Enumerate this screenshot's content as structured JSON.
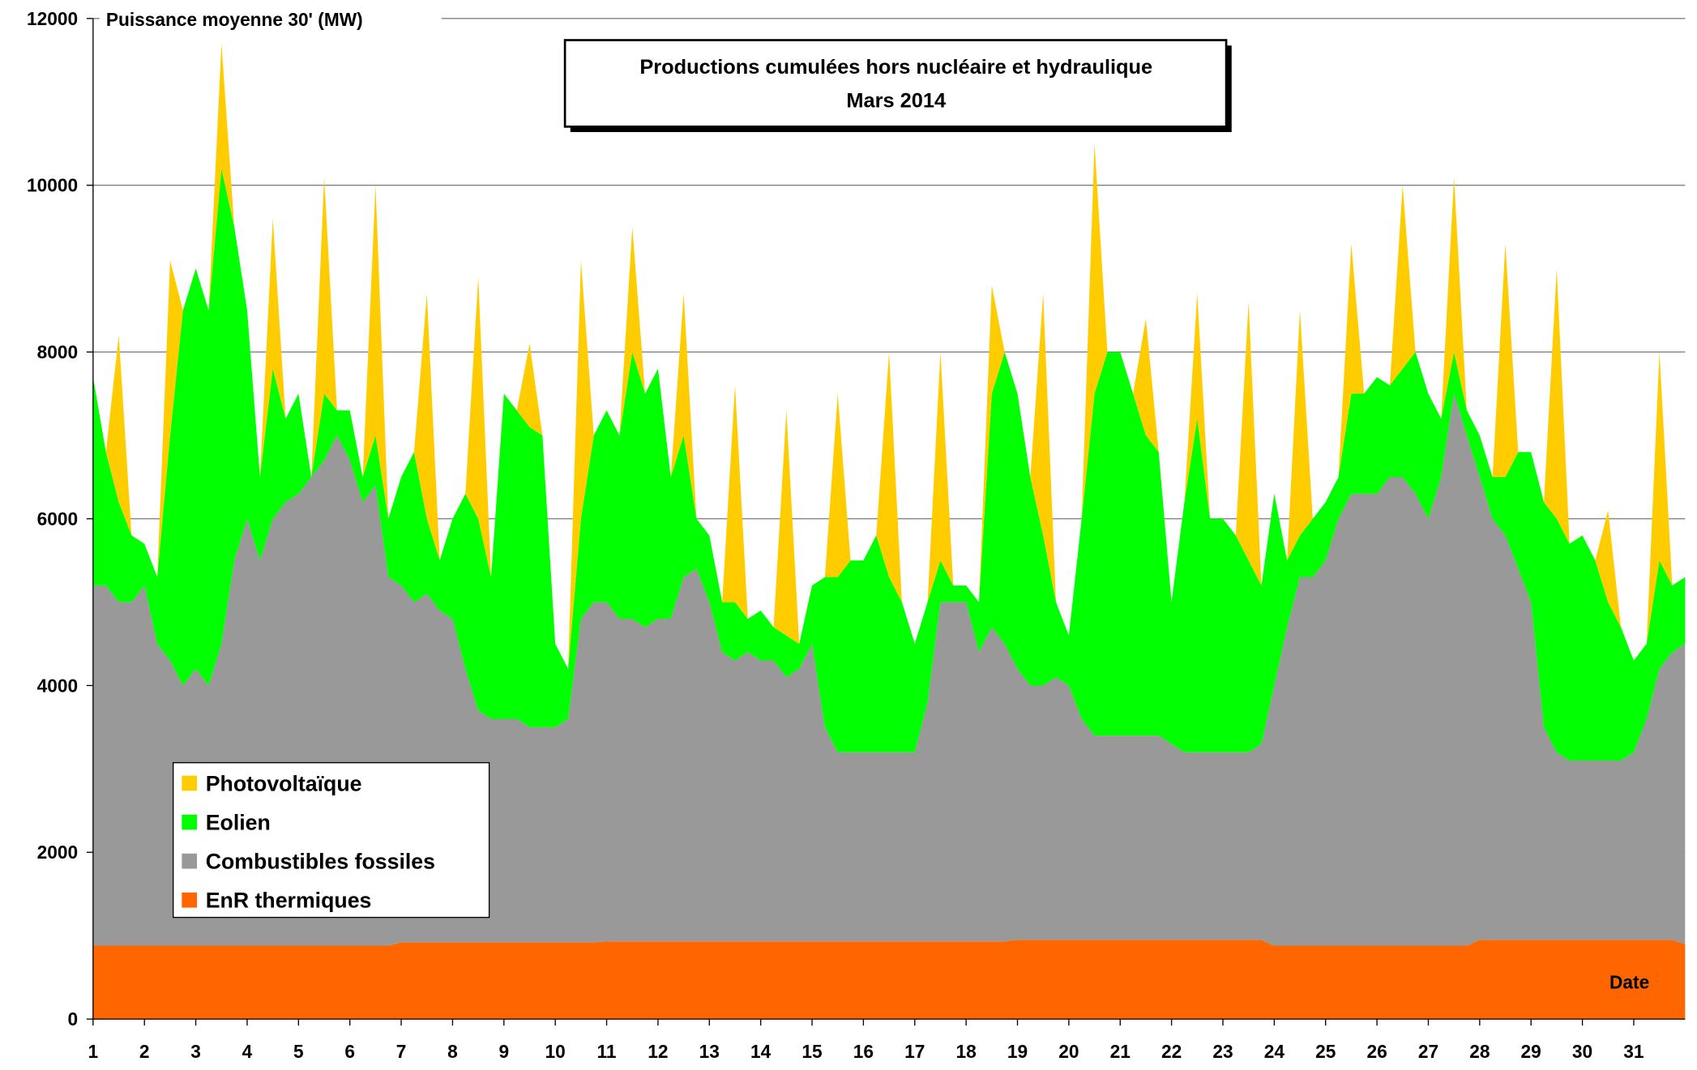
{
  "chart_data": {
    "type": "stacked-area",
    "title": [
      "Productions cumulées hors nucléaire et hydraulique",
      "Mars 2014"
    ],
    "y_label": "Puissance moyenne 30' (MW)",
    "x_label": "Date",
    "xlim": [
      1,
      32
    ],
    "ylim": [
      0,
      12000
    ],
    "xticks": [
      1,
      2,
      3,
      4,
      5,
      6,
      7,
      8,
      9,
      10,
      11,
      12,
      13,
      14,
      15,
      16,
      17,
      18,
      19,
      20,
      21,
      22,
      23,
      24,
      25,
      26,
      27,
      28,
      29,
      30,
      31
    ],
    "yticks": [
      0,
      2000,
      4000,
      6000,
      8000,
      10000,
      12000
    ],
    "grid": true,
    "legend": "lower-left",
    "x": [
      1,
      1.25,
      1.5,
      1.75,
      2,
      2.25,
      2.5,
      2.75,
      3,
      3.25,
      3.5,
      3.75,
      4,
      4.25,
      4.5,
      4.75,
      5,
      5.25,
      5.5,
      5.75,
      6,
      6.25,
      6.5,
      6.75,
      7,
      7.25,
      7.5,
      7.75,
      8,
      8.25,
      8.5,
      8.75,
      9,
      9.25,
      9.5,
      9.75,
      10,
      10.25,
      10.5,
      10.75,
      11,
      11.25,
      11.5,
      11.75,
      12,
      12.25,
      12.5,
      12.75,
      13,
      13.25,
      13.5,
      13.75,
      14,
      14.25,
      14.5,
      14.75,
      15,
      15.25,
      15.5,
      15.75,
      16,
      16.25,
      16.5,
      16.75,
      17,
      17.25,
      17.5,
      17.75,
      18,
      18.25,
      18.5,
      18.75,
      19,
      19.25,
      19.5,
      19.75,
      20,
      20.25,
      20.5,
      20.75,
      21,
      21.25,
      21.5,
      21.75,
      22,
      22.25,
      22.5,
      22.75,
      23,
      23.25,
      23.5,
      23.75,
      24,
      24.25,
      24.5,
      24.75,
      25,
      25.25,
      25.5,
      25.75,
      26,
      26.25,
      26.5,
      26.75,
      27,
      27.25,
      27.5,
      27.75,
      28,
      28.25,
      28.5,
      28.75,
      29,
      29.25,
      29.5,
      29.75,
      30,
      30.25,
      30.5,
      30.75,
      31,
      31.25,
      31.5,
      31.75,
      32
    ],
    "series": [
      {
        "name": "EnR thermiques",
        "color": "#ff6600",
        "values": [
          880,
          880,
          880,
          880,
          880,
          880,
          880,
          880,
          880,
          880,
          880,
          880,
          880,
          880,
          880,
          880,
          880,
          880,
          880,
          880,
          880,
          880,
          880,
          880,
          920,
          920,
          920,
          920,
          920,
          920,
          920,
          920,
          920,
          920,
          920,
          920,
          920,
          920,
          920,
          920,
          930,
          930,
          930,
          930,
          930,
          930,
          930,
          930,
          930,
          930,
          930,
          930,
          930,
          930,
          930,
          930,
          930,
          930,
          930,
          930,
          930,
          930,
          930,
          930,
          930,
          930,
          930,
          930,
          930,
          930,
          930,
          930,
          950,
          950,
          950,
          950,
          950,
          950,
          950,
          950,
          950,
          950,
          950,
          950,
          950,
          950,
          950,
          950,
          950,
          950,
          950,
          950,
          880,
          880,
          880,
          880,
          880,
          880,
          880,
          880,
          880,
          880,
          880,
          880,
          880,
          880,
          880,
          880,
          950,
          950,
          950,
          950,
          950,
          950,
          950,
          950,
          950,
          950,
          950,
          950,
          950,
          950,
          950,
          950,
          900
        ]
      },
      {
        "name": "Combustibles fossiles",
        "color": "#999999",
        "values": [
          4320,
          4320,
          4120,
          4120,
          4320,
          3620,
          3420,
          3120,
          3320,
          3120,
          3620,
          4620,
          5120,
          4620,
          5120,
          5320,
          5420,
          5620,
          5820,
          6120,
          5820,
          5320,
          5520,
          4420,
          4280,
          4080,
          4180,
          3980,
          3880,
          3280,
          2780,
          2680,
          2680,
          2680,
          2580,
          2580,
          2580,
          2680,
          3880,
          4080,
          4070,
          3870,
          3870,
          3770,
          3870,
          3870,
          4370,
          4470,
          4070,
          3470,
          3370,
          3470,
          3370,
          3370,
          3170,
          3270,
          3570,
          2570,
          2270,
          2270,
          2270,
          2270,
          2270,
          2270,
          2270,
          2870,
          4070,
          4070,
          4070,
          3470,
          3770,
          3570,
          3250,
          3050,
          3050,
          3150,
          3050,
          2650,
          2450,
          2450,
          2450,
          2450,
          2450,
          2450,
          2350,
          2250,
          2250,
          2250,
          2250,
          2250,
          2250,
          2350,
          3120,
          3820,
          4420,
          4420,
          4620,
          5120,
          5420,
          5420,
          5420,
          5620,
          5620,
          5420,
          5120,
          5620,
          6620,
          6120,
          5550,
          5050,
          4850,
          4450,
          4050,
          2550,
          2250,
          2150,
          2150,
          2150,
          2150,
          2150,
          2250,
          2650,
          3250,
          3450,
          3600
        ]
      },
      {
        "name": "Eolien",
        "color": "#00ff00",
        "values": [
          2500,
          1600,
          1200,
          800,
          500,
          800,
          2700,
          4500,
          4800,
          4500,
          5700,
          4000,
          2500,
          1000,
          1800,
          1000,
          1200,
          0,
          800,
          300,
          600,
          300,
          600,
          700,
          1300,
          1800,
          900,
          600,
          1200,
          2100,
          2300,
          1700,
          3900,
          3700,
          3600,
          3500,
          1000,
          600,
          1200,
          2000,
          2300,
          2200,
          3200,
          2800,
          3000,
          1700,
          1700,
          600,
          800,
          600,
          700,
          400,
          600,
          400,
          500,
          300,
          700,
          1800,
          2100,
          2300,
          2300,
          2600,
          2100,
          1800,
          1300,
          1200,
          500,
          200,
          200,
          600,
          2800,
          3500,
          3300,
          2500,
          1800,
          900,
          600,
          2400,
          4100,
          4600,
          4600,
          4100,
          3600,
          3400,
          1700,
          3000,
          4000,
          2800,
          2800,
          2600,
          2300,
          1900,
          2300,
          800,
          500,
          700,
          700,
          500,
          1200,
          1200,
          1400,
          1100,
          1300,
          1700,
          1500,
          700,
          500,
          300,
          500,
          500,
          700,
          1400,
          1800,
          2700,
          2800,
          2600,
          2700,
          2400,
          1900,
          1600,
          1100,
          900,
          1300,
          800,
          800
        ]
      },
      {
        "name": "Photovoltaïque",
        "color": "#ffcc00",
        "values": [
          0,
          0,
          2000,
          0,
          0,
          0,
          2100,
          0,
          0,
          0,
          1500,
          0,
          0,
          0,
          1800,
          0,
          0,
          0,
          2600,
          0,
          0,
          0,
          3000,
          0,
          0,
          0,
          2700,
          0,
          0,
          0,
          2900,
          0,
          0,
          0,
          1000,
          0,
          0,
          0,
          3100,
          0,
          0,
          0,
          1500,
          0,
          0,
          0,
          1700,
          0,
          0,
          0,
          2600,
          0,
          0,
          0,
          2700,
          0,
          0,
          0,
          2200,
          0,
          0,
          0,
          2700,
          0,
          0,
          0,
          2500,
          0,
          0,
          0,
          1300,
          0,
          0,
          0,
          2900,
          0,
          0,
          0,
          3000,
          0,
          0,
          0,
          1400,
          0,
          0,
          0,
          1500,
          0,
          0,
          0,
          3100,
          0,
          0,
          0,
          2700,
          0,
          0,
          0,
          1800,
          0,
          0,
          0,
          2200,
          0,
          0,
          0,
          2100,
          0,
          0,
          0,
          2800,
          0,
          0,
          0,
          3000,
          0,
          0,
          0,
          1100,
          0,
          0,
          0,
          2500,
          0,
          0
        ]
      }
    ]
  }
}
